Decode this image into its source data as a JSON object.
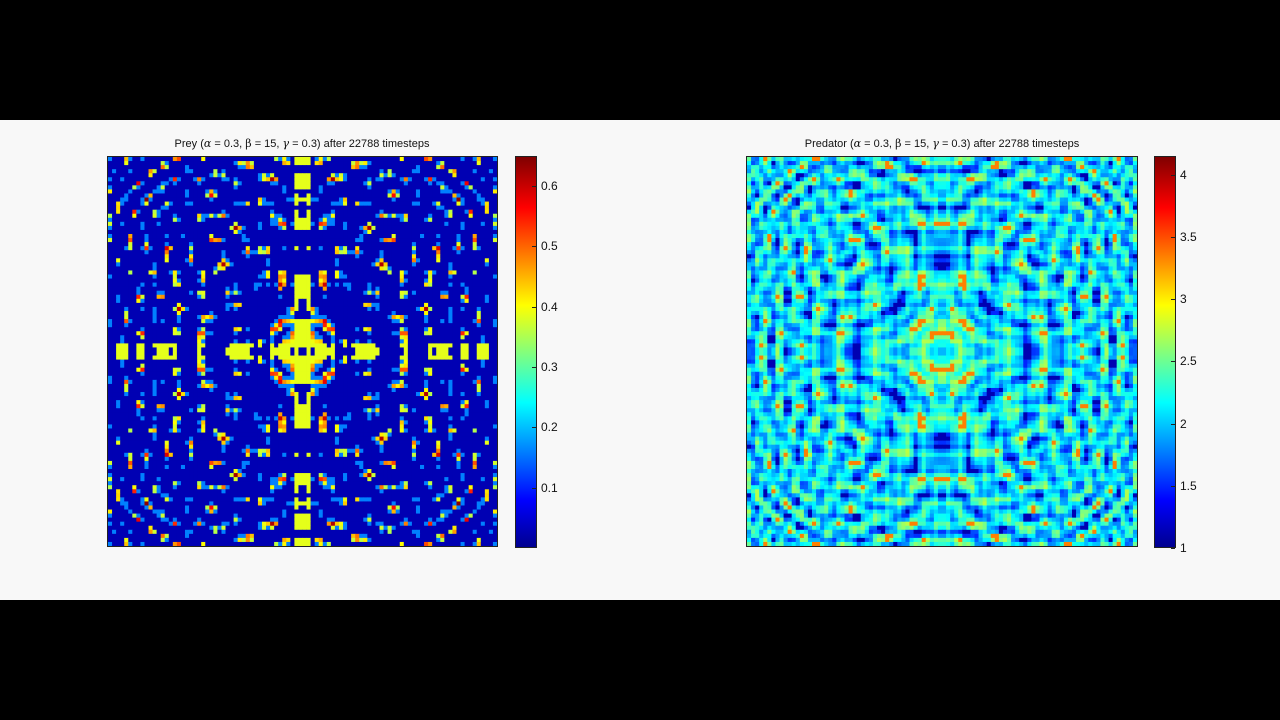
{
  "chart_data": [
    {
      "type": "heatmap",
      "title_parts": [
        "Prey (",
        "α",
        " = 0.3, ",
        "β",
        " = 15, ",
        "γ",
        " = 0.3) after 22788 timesteps"
      ],
      "title": "Prey (α = 0.3, β = 15, γ = 0.3) after 22788 timesteps",
      "parameters": {
        "alpha": 0.3,
        "beta": 15,
        "gamma": 0.3
      },
      "timesteps": 22788,
      "colormap": "jet",
      "colorbar": {
        "range": [
          0,
          0.65
        ],
        "ticks": [
          0.1,
          0.2,
          0.3,
          0.4,
          0.5,
          0.6
        ],
        "tick_labels": [
          "0.1",
          "0.2",
          "0.3",
          "0.4",
          "0.5",
          "0.6"
        ]
      },
      "value_range": [
        0,
        0.65
      ],
      "pattern": "sparse"
    },
    {
      "type": "heatmap",
      "title_parts": [
        "Predator (",
        "α",
        " = 0.3, ",
        "β",
        " = 15, ",
        "γ",
        " = 0.3) after 22788 timesteps"
      ],
      "title": "Predator (α = 0.3, β = 15, γ = 0.3) after 22788 timesteps",
      "parameters": {
        "alpha": 0.3,
        "beta": 15,
        "gamma": 0.3
      },
      "timesteps": 22788,
      "colormap": "jet",
      "colorbar": {
        "range": [
          1,
          4.15
        ],
        "ticks": [
          1,
          1.5,
          2,
          2.5,
          3,
          3.5,
          4
        ],
        "tick_labels": [
          "1",
          "1.5",
          "2",
          "2.5",
          "3",
          "3.5",
          "4"
        ]
      },
      "value_range": [
        1,
        4.15
      ],
      "pattern": "dense"
    }
  ]
}
